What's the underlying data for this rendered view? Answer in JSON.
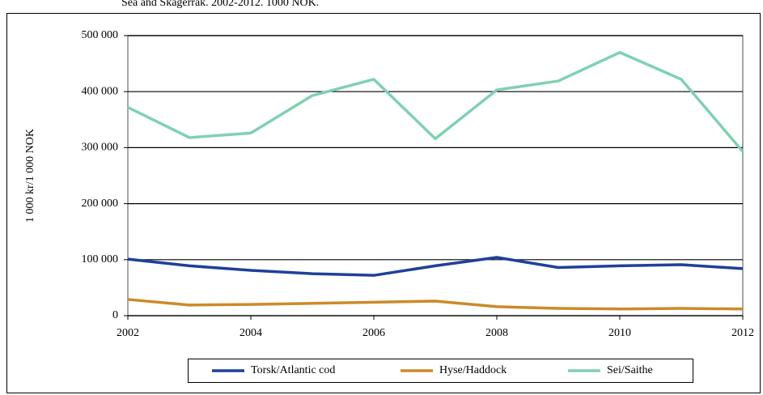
{
  "chart_data": {
    "type": "line",
    "title": "Sea and Skagerrak. 2002-2012. 1000 NOK.",
    "y_label": "1 000 kr/1 000 NOK",
    "x": [
      2002,
      2003,
      2004,
      2005,
      2006,
      2007,
      2008,
      2009,
      2010,
      2011,
      2012
    ],
    "xlim": [
      2002,
      2012
    ],
    "xticks": [
      2002,
      2004,
      2006,
      2008,
      2010,
      2012
    ],
    "ylim": [
      0,
      500000
    ],
    "yticks": [
      {
        "value": 0,
        "label": "0"
      },
      {
        "value": 100000,
        "label": "100 000"
      },
      {
        "value": 200000,
        "label": "200 000"
      },
      {
        "value": 300000,
        "label": "300 000"
      },
      {
        "value": 400000,
        "label": "400 000"
      },
      {
        "value": 500000,
        "label": "500 000"
      }
    ],
    "grid": true,
    "legend": "bottom",
    "series": [
      {
        "name": "Torsk/Atlantic cod",
        "color": "#1f3f99",
        "values": [
          101000,
          89000,
          81000,
          75000,
          72000,
          89000,
          104000,
          86000,
          89000,
          91000,
          84000
        ]
      },
      {
        "name": "Hyse/Haddock",
        "color": "#cc8a2a",
        "values": [
          29000,
          19000,
          20000,
          22000,
          24000,
          26000,
          16000,
          13000,
          12000,
          13000,
          12000
        ]
      },
      {
        "name": "Sei/Saithe",
        "color": "#7fd1b0",
        "values": [
          372000,
          318000,
          326000,
          393000,
          422000,
          316000,
          403000,
          419000,
          470000,
          422000,
          293000
        ]
      }
    ]
  }
}
